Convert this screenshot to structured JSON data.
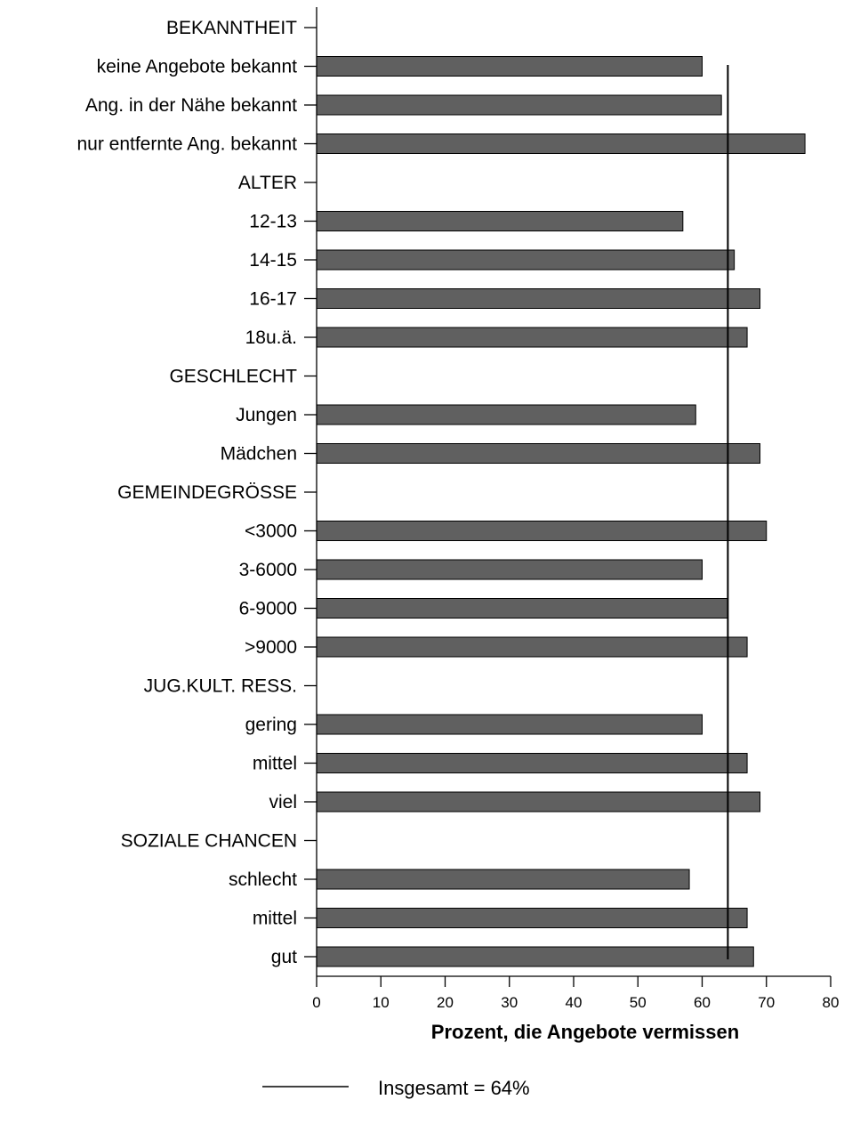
{
  "chart_data": {
    "type": "bar",
    "orientation": "horizontal",
    "xlabel": "Prozent, die Angebote vermissen",
    "xlim": [
      0,
      80
    ],
    "xticks": [
      "0",
      "10",
      "20",
      "30",
      "40",
      "50",
      "60",
      "70",
      "80"
    ],
    "bar_color": "#606060",
    "categories": [
      "BEKANNTHEIT",
      "keine Angebote bekannt",
      "Ang. in der Nähe bekannt",
      "nur entfernte Ang. bekannt",
      "ALTER",
      "12-13",
      "14-15",
      "16-17",
      "18u.ä.",
      "GESCHLECHT",
      "Jungen",
      "Mädchen",
      "GEMEINDEGRÖSSE",
      "<3000",
      "3-6000",
      "6-9000",
      ">9000",
      "JUG.KULT. RESS.",
      "gering",
      "mittel",
      "viel",
      "SOZIALE CHANCEN",
      "schlecht",
      "mittel",
      "gut"
    ],
    "values": [
      null,
      60,
      63,
      76,
      null,
      57,
      65,
      69,
      67,
      null,
      59,
      69,
      null,
      70,
      60,
      64,
      67,
      null,
      60,
      67,
      69,
      null,
      58,
      67,
      68
    ],
    "reference_line": {
      "value": 64,
      "label": "Insgesamt = 64%"
    },
    "legend": {
      "position": "bottom-center"
    },
    "grid": false
  }
}
